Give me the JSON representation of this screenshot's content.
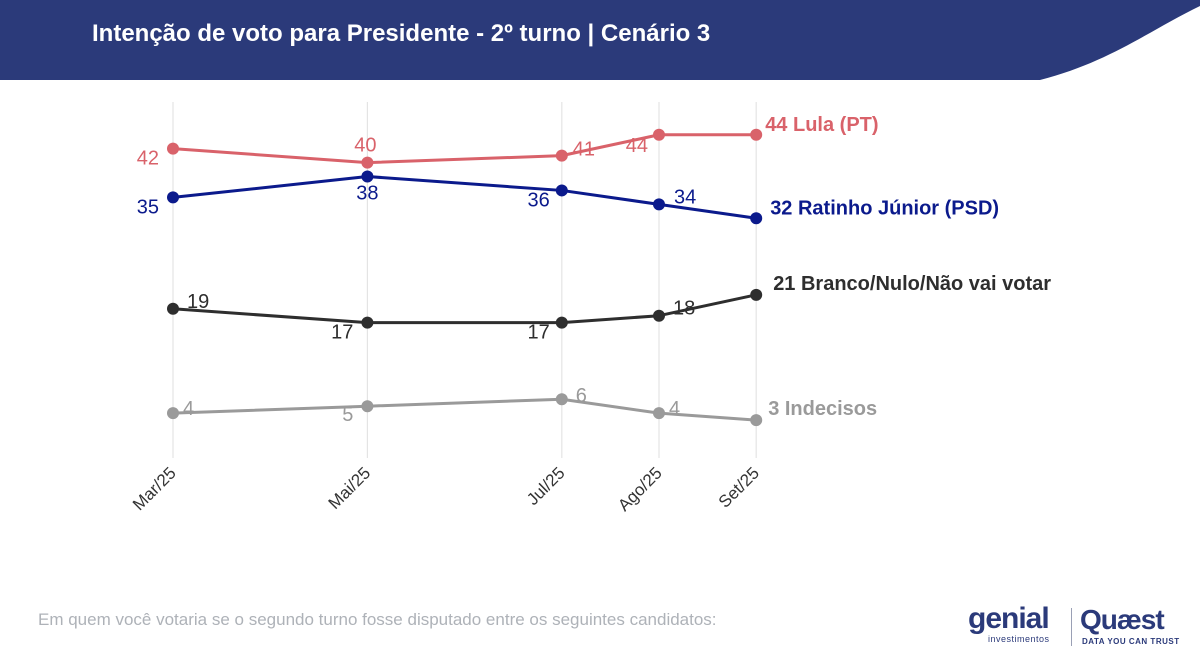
{
  "header": {
    "title": "Intenção de voto para Presidente - 2º turno | Cenário 3",
    "background_color": "#2b3a7a"
  },
  "chart_data": {
    "type": "line",
    "categories": [
      "Mar/25",
      "Mai/25",
      "Jul/25",
      "Ago/25",
      "Set/25"
    ],
    "x_months": [
      3,
      5,
      7,
      8,
      9
    ],
    "ylim": [
      0,
      50
    ],
    "grid": "vertical",
    "series": [
      {
        "name": "Lula (PT)",
        "values": [
          42,
          40,
          41,
          44,
          44
        ],
        "color": "#d9626a",
        "end_label": "44 Lula (PT)"
      },
      {
        "name": "Ratinho Júnior (PSD)",
        "values": [
          35,
          38,
          36,
          34,
          32
        ],
        "color": "#0b1a8c",
        "end_label": "32 Ratinho Júnior (PSD)"
      },
      {
        "name": "Branco/Nulo/Não vai votar",
        "values": [
          19,
          17,
          17,
          18,
          21
        ],
        "color": "#2e2e2e",
        "end_label": "21 Branco/Nulo/Não vai votar"
      },
      {
        "name": "Indecisos",
        "values": [
          4,
          5,
          6,
          4,
          3
        ],
        "color": "#9a9a9a",
        "end_label": "3 Indecisos"
      }
    ]
  },
  "footnote": "Em quem você votaria se o segundo turno fosse disputado entre os seguintes candidatos:",
  "logos": {
    "genial": "genial",
    "genial_sub": "investimentos",
    "quaest": "Quæst",
    "quaest_sub": "DATA YOU CAN TRUST"
  }
}
